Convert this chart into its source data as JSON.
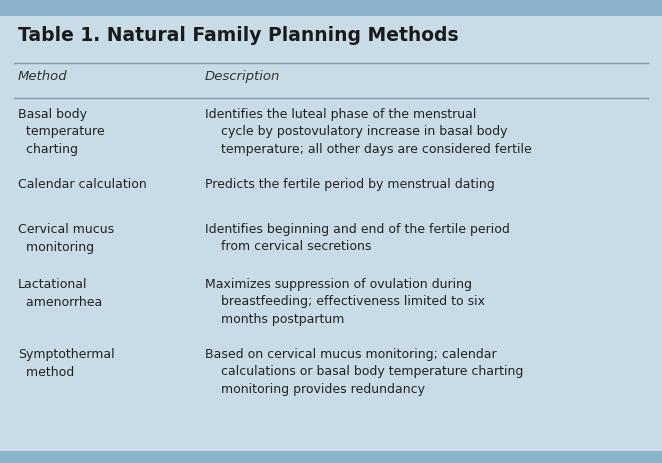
{
  "title": "Table 1. Natural Family Planning Methods",
  "col1_header": "Method",
  "col2_header": "Description",
  "background_color": "#c8dce8",
  "table_bg_color": "#dce8f0",
  "title_color": "#1a1a1a",
  "header_color": "#333333",
  "text_color": "#222222",
  "line_color": "#8899aa",
  "rows": [
    {
      "method": "Basal body\n  temperature\n  charting",
      "description": "Identifies the luteal phase of the menstrual\n    cycle by postovulatory increase in basal body\n    temperature; all other days are considered fertile"
    },
    {
      "method": "Calendar calculation",
      "description": "Predicts the fertile period by menstrual dating"
    },
    {
      "method": "Cervical mucus\n  monitoring",
      "description": "Identifies beginning and end of the fertile period\n    from cervical secretions"
    },
    {
      "method": "Lactational\n  amenorrhea",
      "description": "Maximizes suppression of ovulation during\n    breastfeeding; effectiveness limited to six\n    months postpartum"
    },
    {
      "method": "Symptothermal\n  method",
      "description": "Based on cervical mucus monitoring; calendar\n    calculations or basal body temperature charting\n    monitoring provides redundancy"
    }
  ],
  "figsize": [
    6.62,
    4.63
  ],
  "dpi": 100
}
